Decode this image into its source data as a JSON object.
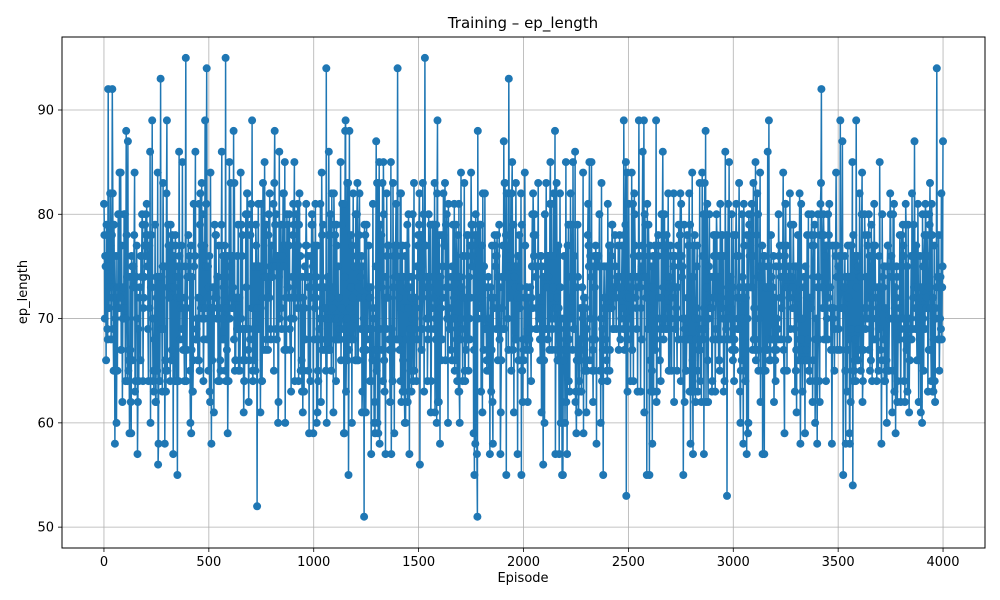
{
  "chart_data": {
    "type": "line",
    "title": "Training – ep_length",
    "xlabel": "Episode",
    "ylabel": "ep_length",
    "xlim": [
      -200,
      4200
    ],
    "ylim": [
      48,
      97
    ],
    "x_ticks": [
      0,
      500,
      1000,
      1500,
      2000,
      2500,
      3000,
      3500,
      4000
    ],
    "y_ticks": [
      50,
      60,
      70,
      80,
      90
    ],
    "grid": true,
    "series": [
      {
        "name": "",
        "color": "#1f77b4",
        "marker": "circle",
        "x_range": [
          0,
          4000
        ],
        "mean": 72,
        "y_min_observed": 51,
        "y_max_observed": 95,
        "notable_points": [
          {
            "x": 20,
            "y": 92
          },
          {
            "x": 40,
            "y": 92
          },
          {
            "x": 60,
            "y": 60
          },
          {
            "x": 160,
            "y": 57
          },
          {
            "x": 270,
            "y": 93
          },
          {
            "x": 330,
            "y": 57
          },
          {
            "x": 390,
            "y": 95
          },
          {
            "x": 490,
            "y": 94
          },
          {
            "x": 580,
            "y": 95
          },
          {
            "x": 730,
            "y": 52
          },
          {
            "x": 1060,
            "y": 94
          },
          {
            "x": 1240,
            "y": 51
          },
          {
            "x": 1400,
            "y": 94
          },
          {
            "x": 1530,
            "y": 95
          },
          {
            "x": 1780,
            "y": 51
          },
          {
            "x": 1930,
            "y": 93
          },
          {
            "x": 2490,
            "y": 53
          },
          {
            "x": 2970,
            "y": 53
          },
          {
            "x": 3420,
            "y": 92
          },
          {
            "x": 3570,
            "y": 54
          },
          {
            "x": 3970,
            "y": 94
          }
        ]
      }
    ]
  }
}
